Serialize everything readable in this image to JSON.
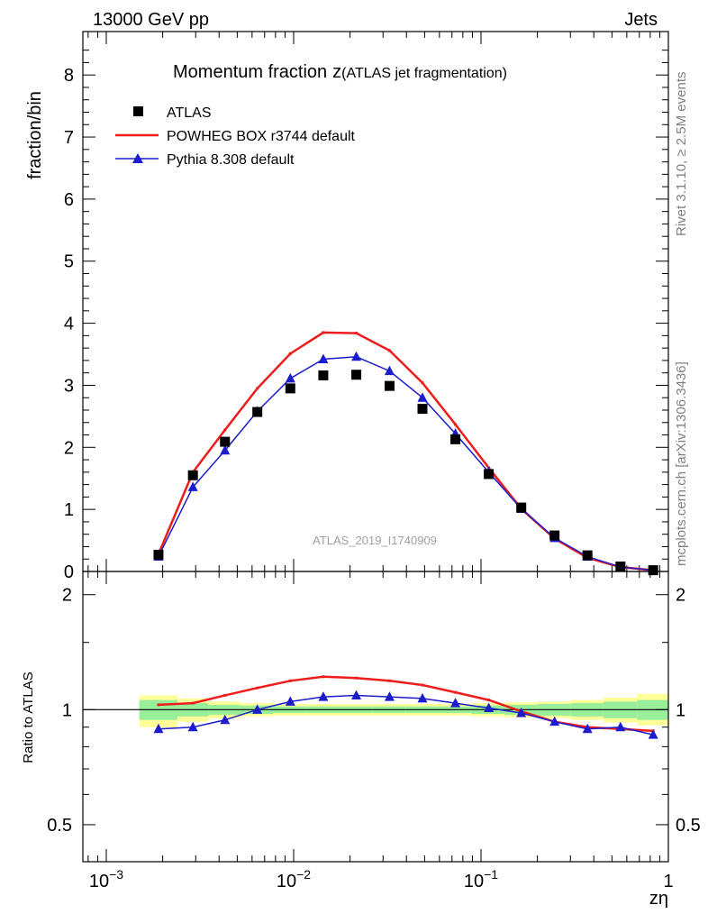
{
  "header": {
    "left": "13000 GeV pp",
    "right": "Jets"
  },
  "side_labels": {
    "top": "Rivet 3.1.10, ≥ 2.5M events",
    "bottom": "mcplots.cern.ch [arXiv:1306.3436]"
  },
  "chart_data": {
    "type": "line",
    "title": "Momentum fraction",
    "title_symbol": "z",
    "title_suffix": "(ATLAS jet fragmentation)",
    "ylabel": "fraction/bin",
    "xlabel": "zη",
    "ratio_ylabel": "Ratio to ATLAS",
    "watermark": "ATLAS_2019_I1740909",
    "x_scale": "log",
    "xlim": [
      0.00075,
      1.0
    ],
    "ylim": [
      0,
      8.7
    ],
    "ratio_ylim": [
      0.4,
      2.3
    ],
    "x_tick_labels": [
      {
        "base": "10",
        "exp": "−3"
      },
      {
        "base": "10",
        "exp": "−2"
      },
      {
        "base": "10",
        "exp": "−1"
      },
      {
        "base": "1",
        "exp": ""
      }
    ],
    "y_tick_labels": [
      "0",
      "1",
      "2",
      "3",
      "4",
      "5",
      "6",
      "7",
      "8"
    ],
    "ratio_tick_labels": [
      "0.5",
      "1",
      "2"
    ],
    "legend": {
      "position": "top-left"
    },
    "x": [
      0.0019,
      0.0029,
      0.0043,
      0.0064,
      0.0096,
      0.0144,
      0.0216,
      0.0325,
      0.0487,
      0.073,
      0.11,
      0.164,
      0.247,
      0.37,
      0.555,
      0.83
    ],
    "bands": {
      "edges": [
        0.0015,
        0.0024,
        0.0035,
        0.0052,
        0.0078,
        0.0117,
        0.0176,
        0.0264,
        0.0396,
        0.0594,
        0.0891,
        0.134,
        0.2,
        0.3,
        0.45,
        0.68,
        1.0
      ],
      "yellow_lo": [
        0.9,
        0.93,
        0.95,
        0.96,
        0.965,
        0.965,
        0.965,
        0.965,
        0.965,
        0.965,
        0.96,
        0.955,
        0.95,
        0.94,
        0.925,
        0.91
      ],
      "yellow_hi": [
        1.09,
        1.07,
        1.05,
        1.04,
        1.035,
        1.035,
        1.035,
        1.035,
        1.035,
        1.035,
        1.04,
        1.045,
        1.05,
        1.06,
        1.075,
        1.1
      ],
      "green_lo": [
        0.94,
        0.96,
        0.97,
        0.975,
        0.98,
        0.98,
        0.98,
        0.98,
        0.98,
        0.98,
        0.975,
        0.97,
        0.965,
        0.96,
        0.95,
        0.94
      ],
      "green_hi": [
        1.06,
        1.04,
        1.03,
        1.025,
        1.02,
        1.02,
        1.02,
        1.02,
        1.02,
        1.02,
        1.025,
        1.03,
        1.035,
        1.04,
        1.05,
        1.06
      ]
    },
    "series": [
      {
        "name": "ATLAS",
        "style": "data",
        "color": "#000000",
        "values": [
          0.27,
          1.55,
          2.09,
          2.57,
          2.95,
          3.16,
          3.17,
          2.99,
          2.62,
          2.13,
          1.57,
          1.03,
          0.58,
          0.26,
          0.08,
          0.02
        ]
      },
      {
        "name": "POWHEG BOX r3744 default",
        "style": "line",
        "color": "#ee1c1c",
        "values": [
          0.28,
          1.6,
          2.28,
          2.95,
          3.51,
          3.85,
          3.84,
          3.56,
          3.04,
          2.37,
          1.67,
          1.01,
          0.53,
          0.22,
          0.07,
          0.02
        ],
        "ratio": [
          1.03,
          1.04,
          1.09,
          1.14,
          1.19,
          1.22,
          1.21,
          1.19,
          1.16,
          1.11,
          1.06,
          0.99,
          0.93,
          0.9,
          0.89,
          0.88
        ]
      },
      {
        "name": "Pythia 8.308 default",
        "style": "triangles",
        "color": "#1c1ccc",
        "values": [
          0.24,
          1.36,
          1.95,
          2.58,
          3.11,
          3.42,
          3.46,
          3.23,
          2.8,
          2.22,
          1.6,
          1.01,
          0.54,
          0.24,
          0.07,
          0.02
        ],
        "ratio": [
          0.89,
          0.9,
          0.94,
          1.0,
          1.05,
          1.08,
          1.09,
          1.08,
          1.07,
          1.04,
          1.01,
          0.98,
          0.93,
          0.89,
          0.9,
          0.86
        ]
      }
    ]
  }
}
